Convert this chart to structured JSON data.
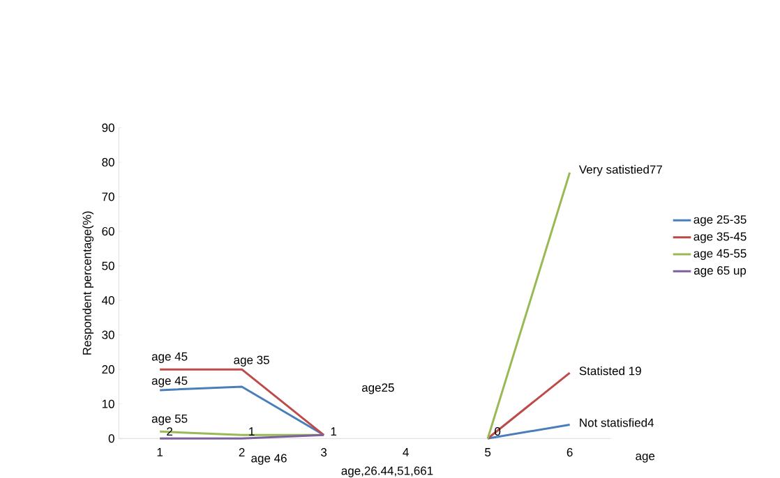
{
  "chart_data": {
    "type": "line",
    "ylabel": "Respondent percentage(%)",
    "xlabel": "age",
    "categories": [
      "1",
      "2",
      "3",
      "4",
      "5",
      "6"
    ],
    "series": [
      {
        "name": "age 25-35",
        "color": "#4a7ebb",
        "values": [
          14,
          15,
          1,
          null,
          0,
          4
        ]
      },
      {
        "name": "age 35-45",
        "color": "#be4b48",
        "values": [
          20,
          20,
          1,
          null,
          0,
          19
        ]
      },
      {
        "name": "age 45-55",
        "color": "#98b954",
        "values": [
          2,
          1,
          1,
          null,
          0,
          77
        ]
      },
      {
        "name": "age 65 up",
        "color": "#7d60a0",
        "values": [
          0,
          0,
          1,
          null,
          null,
          null
        ]
      }
    ],
    "ylim": [
      0,
      90
    ],
    "yticks": [
      0,
      10,
      20,
      30,
      40,
      50,
      60,
      70,
      80,
      90
    ],
    "legend": "right",
    "grid": false,
    "marker": "none",
    "annotations": [
      {
        "text": "age 45",
        "x": "1",
        "y": 21
      },
      {
        "text": "age 35",
        "x": "2",
        "y": 20
      },
      {
        "text": "age 45",
        "x": "1",
        "y": 14
      },
      "age25",
      {
        "text": "age 55",
        "x": "1",
        "y": 3
      },
      {
        "text": "2",
        "x": "1",
        "y": 0
      },
      {
        "text": "1",
        "x": "2",
        "y": 0
      },
      {
        "text": "1",
        "x": "3",
        "y": 0
      },
      {
        "text": "0",
        "x": "5",
        "y": 0
      },
      {
        "text": "Very satistied77",
        "x": "6",
        "y": 77
      },
      {
        "text": "Statisted 19",
        "x": "6",
        "y": 19
      },
      {
        "text": "Not statisfied4",
        "x": "6",
        "y": 4
      },
      "age 46",
      "age,26.44,51,661"
    ]
  }
}
